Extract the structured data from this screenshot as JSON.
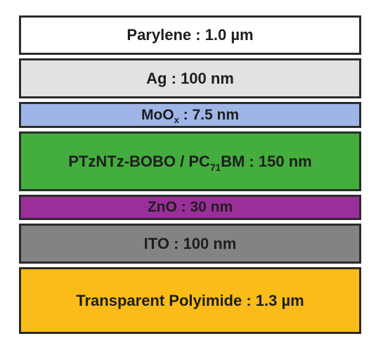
{
  "layers": [
    {
      "parts": [
        "Parylene : 1.0 µm"
      ],
      "color": "#ffffff"
    },
    {
      "parts": [
        "Ag : 100 nm"
      ],
      "color": "#e2e2e2"
    },
    {
      "parts": [
        "MoO",
        "x",
        " : 7.5 nm"
      ],
      "color": "#9fb5e8"
    },
    {
      "parts": [
        "PTzNTz-BOBO / PC",
        "71",
        "BM : 150 nm"
      ],
      "color": "#43ad3d"
    },
    {
      "parts": [
        "ZnO : 30 nm"
      ],
      "color": "#9a2f9a"
    },
    {
      "parts": [
        "ITO : 100 nm"
      ],
      "color": "#838383"
    },
    {
      "parts": [
        "Transparent Polyimide : 1.3 µm"
      ],
      "color": "#fabc18"
    }
  ]
}
